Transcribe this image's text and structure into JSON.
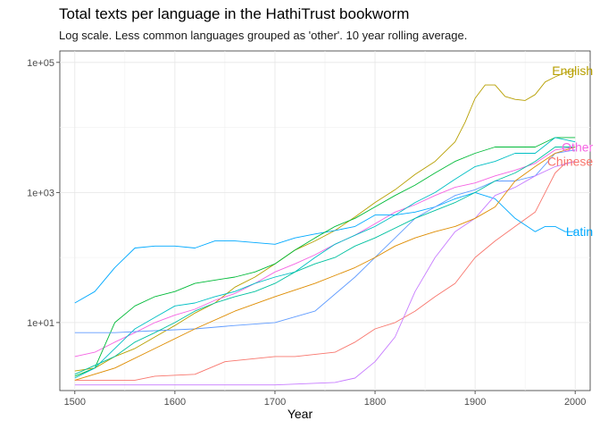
{
  "chart_data": {
    "type": "line",
    "title": "Total texts per language in the HathiTrust bookworm",
    "subtitle": "Log scale. Less common languages grouped as 'other'. 10 year rolling average.",
    "xlabel": "Year",
    "ylabel": "",
    "xlim": [
      1485,
      2015
    ],
    "ylim": [
      0.9,
      150000
    ],
    "yscale": "log",
    "x_ticks": [
      1500,
      1600,
      1700,
      1800,
      1900,
      2000
    ],
    "x_tick_labels": [
      "1500",
      "1600",
      "1700",
      "1800",
      "1900",
      "2000"
    ],
    "y_ticks": [
      10,
      1000,
      100000
    ],
    "y_tick_labels": [
      "1e+01",
      "1e+03",
      "1e+05"
    ],
    "grid": true,
    "legend": "direct labels at line ends",
    "series": [
      {
        "name": "English",
        "color": "#B79F00",
        "x": [
          1500,
          1520,
          1540,
          1560,
          1580,
          1600,
          1620,
          1640,
          1660,
          1680,
          1700,
          1720,
          1740,
          1760,
          1780,
          1800,
          1820,
          1840,
          1860,
          1880,
          1890,
          1900,
          1910,
          1920,
          1930,
          1940,
          1950,
          1960,
          1970,
          1980,
          1990,
          2000
        ],
        "y": [
          1.8,
          2,
          3,
          4,
          6,
          9,
          14,
          20,
          35,
          50,
          80,
          130,
          180,
          260,
          420,
          700,
          1100,
          1900,
          3000,
          6000,
          12000,
          28000,
          45000,
          45000,
          30000,
          27000,
          26000,
          32000,
          50000,
          60000,
          70000,
          75000
        ]
      },
      {
        "name": "Other",
        "color": "#F564E3",
        "x": [
          1500,
          1520,
          1540,
          1560,
          1580,
          1600,
          1620,
          1640,
          1660,
          1680,
          1700,
          1720,
          1740,
          1760,
          1780,
          1800,
          1820,
          1840,
          1860,
          1880,
          1900,
          1920,
          1940,
          1960,
          1980,
          2000
        ],
        "y": [
          3,
          3.5,
          5,
          7,
          10,
          13,
          16,
          22,
          28,
          40,
          60,
          80,
          110,
          160,
          220,
          330,
          500,
          650,
          900,
          1200,
          1400,
          1800,
          2200,
          2800,
          4500,
          5000
        ]
      },
      {
        "name": "Chinese",
        "color": "#F8766D",
        "x": [
          1500,
          1560,
          1580,
          1620,
          1650,
          1700,
          1720,
          1760,
          1780,
          1800,
          1820,
          1840,
          1860,
          1880,
          1900,
          1920,
          1940,
          1960,
          1970,
          1980,
          1990,
          2000
        ],
        "y": [
          1.3,
          1.3,
          1.5,
          1.6,
          2.5,
          3,
          3,
          3.5,
          5,
          8,
          10,
          15,
          25,
          40,
          100,
          180,
          300,
          500,
          1000,
          2000,
          2800,
          3000
        ]
      },
      {
        "name": "Latin",
        "color": "#00A9FF",
        "x": [
          1500,
          1520,
          1540,
          1560,
          1580,
          1600,
          1620,
          1640,
          1660,
          1680,
          1700,
          1720,
          1740,
          1760,
          1780,
          1800,
          1820,
          1840,
          1860,
          1880,
          1900,
          1920,
          1940,
          1960,
          1970,
          1980,
          1990,
          2000
        ],
        "y": [
          20,
          30,
          70,
          140,
          150,
          150,
          140,
          180,
          180,
          170,
          160,
          200,
          230,
          260,
          300,
          450,
          450,
          500,
          600,
          800,
          1000,
          800,
          400,
          250,
          300,
          300,
          250,
          250
        ]
      },
      {
        "color": "#00BA38",
        "x": [
          1500,
          1520,
          1540,
          1560,
          1580,
          1600,
          1620,
          1640,
          1660,
          1680,
          1700,
          1720,
          1740,
          1760,
          1780,
          1800,
          1820,
          1840,
          1860,
          1880,
          1900,
          1920,
          1940,
          1960,
          1980,
          2000
        ],
        "y": [
          1.5,
          2,
          10,
          18,
          25,
          30,
          40,
          45,
          50,
          60,
          80,
          130,
          200,
          300,
          400,
          600,
          900,
          1300,
          2000,
          3000,
          4000,
          5000,
          5000,
          5000,
          7000,
          7000
        ]
      },
      {
        "color": "#00BFC4",
        "x": [
          1500,
          1520,
          1540,
          1560,
          1580,
          1600,
          1620,
          1640,
          1660,
          1680,
          1700,
          1720,
          1740,
          1760,
          1780,
          1800,
          1820,
          1840,
          1860,
          1880,
          1900,
          1920,
          1940,
          1960,
          1980,
          2000
        ],
        "y": [
          1.4,
          2,
          4,
          8,
          12,
          18,
          20,
          25,
          30,
          40,
          50,
          60,
          100,
          160,
          220,
          300,
          450,
          700,
          1000,
          1600,
          2500,
          3000,
          4000,
          4000,
          7000,
          6000
        ]
      },
      {
        "color": "#619CFF",
        "x": [
          1500,
          1540,
          1580,
          1620,
          1660,
          1700,
          1740,
          1780,
          1800,
          1820,
          1840,
          1860,
          1880,
          1900,
          1920,
          1940,
          1960,
          1980,
          2000
        ],
        "y": [
          7,
          7,
          7.5,
          8,
          9,
          10,
          15,
          50,
          100,
          200,
          400,
          600,
          900,
          1100,
          1500,
          1500,
          1800,
          4000,
          4500
        ]
      },
      {
        "color": "#C77CFF",
        "x": [
          1500,
          1600,
          1700,
          1760,
          1780,
          1800,
          1820,
          1840,
          1860,
          1880,
          1900,
          1920,
          1940,
          1960,
          1980,
          2000
        ],
        "y": [
          1.1,
          1.1,
          1.1,
          1.2,
          1.4,
          2.5,
          6,
          30,
          100,
          250,
          400,
          900,
          1200,
          1800,
          2500,
          3000
        ]
      },
      {
        "color": "#00C19F",
        "x": [
          1500,
          1520,
          1540,
          1560,
          1580,
          1600,
          1620,
          1640,
          1660,
          1680,
          1700,
          1720,
          1740,
          1760,
          1780,
          1800,
          1840,
          1880,
          1900,
          1920,
          1940,
          1960,
          1980,
          2000
        ],
        "y": [
          1.6,
          2.2,
          3,
          5,
          7,
          10,
          15,
          20,
          25,
          30,
          40,
          60,
          80,
          100,
          150,
          200,
          400,
          700,
          1000,
          1500,
          2000,
          3000,
          5000,
          5000
        ]
      },
      {
        "color": "#DE8C00",
        "x": [
          1500,
          1540,
          1580,
          1620,
          1660,
          1700,
          1740,
          1780,
          1800,
          1820,
          1840,
          1860,
          1880,
          1900,
          1920,
          1940,
          1960,
          1980,
          2000
        ],
        "y": [
          1.3,
          2,
          4,
          8,
          15,
          25,
          40,
          70,
          100,
          150,
          200,
          250,
          300,
          400,
          600,
          1500,
          2500,
          4000,
          5000
        ]
      }
    ]
  }
}
